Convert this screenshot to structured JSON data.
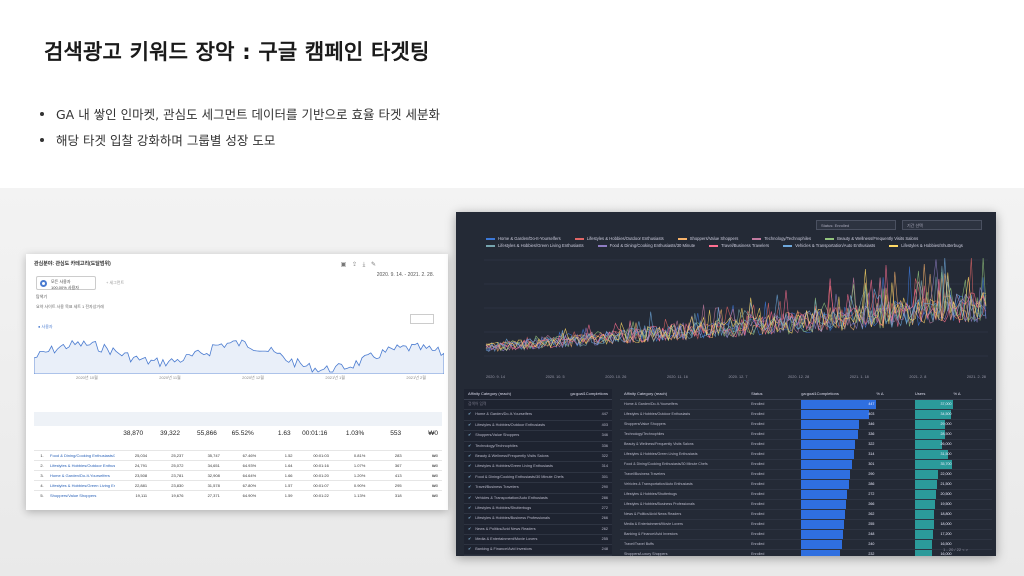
{
  "slide": {
    "title": "검색광고 키워드 장악 : 구글 캠페인 타겟팅",
    "bullets": [
      "GA 내 쌓인 인마켓, 관심도 세그먼트 데이터를 기반으로 효율 타겟 세분화",
      "해당 타겟 입찰 강화하며 그룹별 성장 도모"
    ]
  },
  "ga_report": {
    "header": "관심분야: 관심도 카테고리(도달범위)",
    "date_range": "2020. 9. 14. - 2021. 2. 28.",
    "segment_label": "모든 사용자",
    "segment_sub": "100.00% 사용자",
    "add_segment": "+ 세그먼트",
    "tabs": "탐색기",
    "subtabs": "요약   사이트 사용   목표 세트 1   전자상거래",
    "metric": "● 사용자",
    "x_ticks": [
      "2020년 10월",
      "2020년 11월",
      "2020년 12월",
      "2021년 1월",
      "2021년 2월"
    ],
    "search_placeholder": "고급",
    "totals": [
      "38,870",
      "39,322",
      "55,866",
      "65.52%",
      "1.63",
      "00:01:16",
      "1.03%",
      "553",
      "₩0"
    ],
    "rows": [
      {
        "n": "1.",
        "label": "Food & Dining/Cooking Enthusiasts/30 Minute Chefs",
        "v": [
          "25,034",
          "25,237",
          "35,747",
          "67.46%",
          "1.52",
          "00:01:03",
          "0.81%",
          "283",
          "₩0"
        ]
      },
      {
        "n": "2.",
        "label": "Lifestyles & Hobbies/Outdoor Enthusiasts",
        "v": [
          "24,791",
          "25,072",
          "34,651",
          "64.93%",
          "1.64",
          "00:01:16",
          "1.07%",
          "367",
          "₩0"
        ]
      },
      {
        "n": "3.",
        "label": "Home & Garden/Do-It-Yourselfers",
        "v": [
          "23,508",
          "23,781",
          "32,908",
          "64.64%",
          "1.66",
          "00:01:20",
          "1.20%",
          "413",
          "₩0"
        ]
      },
      {
        "n": "4.",
        "label": "Lifestyles & Hobbies/Green Living Enthusiasts",
        "v": [
          "22,881",
          "23,830",
          "31,578",
          "67.80%",
          "1.57",
          "00:01:07",
          "0.90%",
          "295",
          "₩0"
        ]
      },
      {
        "n": "5.",
        "label": "Shoppers/Value Shoppers",
        "v": [
          "19,111",
          "19,676",
          "27,371",
          "64.90%",
          "1.59",
          "00:01:22",
          "1.13%",
          "318",
          "₩0"
        ]
      }
    ]
  },
  "dashboard": {
    "dropdowns": [
      "Status: Enrolled",
      "기간 선택"
    ],
    "legend": [
      {
        "name": "Home & Garden/Do-It-Yourselfers",
        "color": "#3c78d8"
      },
      {
        "name": "Lifestyles & Hobbies/Outdoor Enthusiasts",
        "color": "#e06666"
      },
      {
        "name": "Shoppers/Value Shoppers",
        "color": "#f6b26b"
      },
      {
        "name": "Technology/Technophiles",
        "color": "#c27ba0"
      },
      {
        "name": "Beauty & Wellness/Frequently Visits Salons",
        "color": "#93c47d"
      },
      {
        "name": "Lifestyles & Hobbies/Green Living Enthusiasts",
        "color": "#76a5af"
      },
      {
        "name": "Food & Dining/Cooking Enthusiasts/30 Minute",
        "color": "#8e7cc3"
      },
      {
        "name": "Travel/Business Travelers",
        "color": "#ff6f91"
      },
      {
        "name": "Vehicles & Transportation/Auto Enthusiasts",
        "color": "#6fa8dc"
      },
      {
        "name": "Lifestyles & Hobbies/Shutterbugs",
        "color": "#ffd966"
      }
    ],
    "x_ticks": [
      "2020. 9. 14",
      "2020. 10. 5",
      "2020. 10. 26",
      "2020. 11. 16",
      "2020. 12. 7",
      "2020. 12. 28",
      "2021. 1. 18",
      "2021. 2. 8",
      "2021. 2. 28"
    ],
    "left_table": {
      "header": [
        "Affinity Category (reach)",
        "ga:goal1Completions"
      ],
      "search": "검색어 입력",
      "rows": [
        {
          "label": "Home & Garden/Do-It-Yourselfers",
          "v": "447"
        },
        {
          "label": "Lifestyles & Hobbies/Outdoor Enthusiasts",
          "v": "403"
        },
        {
          "label": "Shoppers/Value Shoppers",
          "v": "346"
        },
        {
          "label": "Technology/Technophiles",
          "v": "336"
        },
        {
          "label": "Beauty & Wellness/Frequently Visits Salons",
          "v": "322"
        },
        {
          "label": "Lifestyles & Hobbies/Green Living Enthusiasts",
          "v": "314"
        },
        {
          "label": "Food & Dining/Cooking Enthusiasts/30 Minute Chefs",
          "v": "301"
        },
        {
          "label": "Travel/Business Travelers",
          "v": "290"
        },
        {
          "label": "Vehicles & Transportation/Auto Enthusiasts",
          "v": "286"
        },
        {
          "label": "Lifestyles & Hobbies/Shutterbugs",
          "v": "272"
        },
        {
          "label": "Lifestyles & Hobbies/Business Professionals",
          "v": "266"
        },
        {
          "label": "News & Politics/Avid News Readers",
          "v": "262"
        },
        {
          "label": "Media & Entertainment/Movie Lovers",
          "v": "255"
        },
        {
          "label": "Banking & Finance/Avid Investors",
          "v": "248"
        }
      ]
    },
    "right_table": {
      "header": [
        "Affinity Category (reach)",
        "Status",
        "ga:goal1Completions",
        "% Δ",
        "Users",
        "% Δ"
      ],
      "rows": [
        {
          "label": "Home & Garden/Do-It-Yourselfers",
          "status": "Enrolled",
          "g": 447,
          "u": 37000
        },
        {
          "label": "Lifestyles & Hobbies/Outdoor Enthusiasts",
          "status": "Enrolled",
          "g": 403,
          "u": 34500
        },
        {
          "label": "Shoppers/Value Shoppers",
          "status": "Enrolled",
          "g": 346,
          "u": 29000
        },
        {
          "label": "Technology/Technophiles",
          "status": "Enrolled",
          "g": 336,
          "u": 28500
        },
        {
          "label": "Beauty & Wellness/Frequently Visits Salons",
          "status": "Enrolled",
          "g": 322,
          "u": 26000
        },
        {
          "label": "Lifestyles & Hobbies/Green Living Enthusiasts",
          "status": "Enrolled",
          "g": 314,
          "u": 31500
        },
        {
          "label": "Food & Dining/Cooking Enthusiasts/30 Minute Chefs",
          "status": "Enrolled",
          "g": 301,
          "u": 35700
        },
        {
          "label": "Travel/Business Travelers",
          "status": "Enrolled",
          "g": 290,
          "u": 22000
        },
        {
          "label": "Vehicles & Transportation/Auto Enthusiasts",
          "status": "Enrolled",
          "g": 286,
          "u": 21500
        },
        {
          "label": "Lifestyles & Hobbies/Shutterbugs",
          "status": "Enrolled",
          "g": 272,
          "u": 20500
        },
        {
          "label": "Lifestyles & Hobbies/Business Professionals",
          "status": "Enrolled",
          "g": 266,
          "u": 19500
        },
        {
          "label": "News & Politics/Avid News Readers",
          "status": "Enrolled",
          "g": 262,
          "u": 18800
        },
        {
          "label": "Media & Entertainment/Movie Lovers",
          "status": "Enrolled",
          "g": 255,
          "u": 18000
        },
        {
          "label": "Banking & Finance/Avid Investors",
          "status": "Enrolled",
          "g": 248,
          "u": 17200
        },
        {
          "label": "Travel/Travel Buffs",
          "status": "Enrolled",
          "g": 240,
          "u": 16500
        },
        {
          "label": "Shoppers/Luxury Shoppers",
          "status": "Enrolled",
          "g": 232,
          "u": 16000
        }
      ],
      "pager": "1 - 20 / 22  <  >"
    }
  }
}
